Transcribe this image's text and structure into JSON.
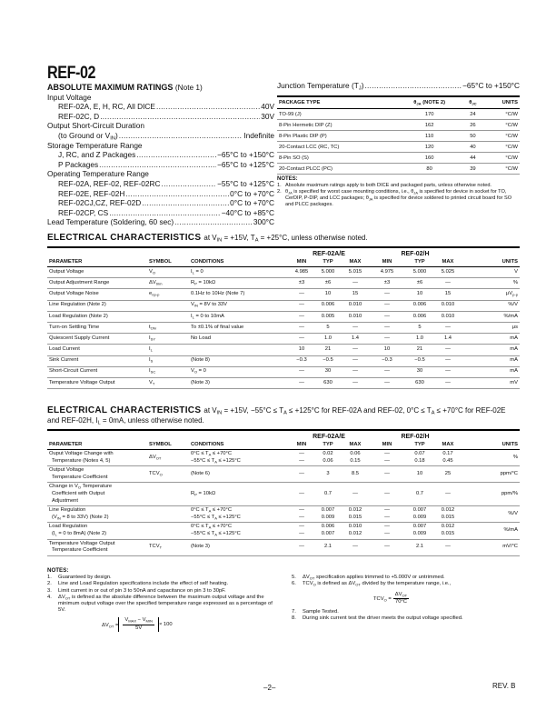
{
  "title": "REF-02",
  "abs_max": {
    "heading": "ABSOLUTE MAXIMUM RATINGS",
    "heading_note": "(Note 1)",
    "items": [
      {
        "label": "Input Voltage",
        "indent": 0
      },
      {
        "label": "REF-02A, E, H, RC, All DICE",
        "value": "40V",
        "indent": 1
      },
      {
        "label": "REF-02C, D",
        "value": "30V",
        "indent": 1
      },
      {
        "label": "Output Short-Circuit Duration",
        "indent": 0
      },
      {
        "label": "(to Ground or V_{IN})",
        "value": "Indefinite",
        "indent": 1
      },
      {
        "label": "Storage Temperature Range",
        "indent": 0
      },
      {
        "label": "J, RC, and Z Packages",
        "value": "−65°C to +150°C",
        "indent": 1
      },
      {
        "label": "P Packages",
        "value": "−65°C to +125°C",
        "indent": 1
      },
      {
        "label": "Operating Temperature  Range",
        "indent": 0
      },
      {
        "label": "REF-02A, REF-02, REF-02RC",
        "value": "−55°C to +125°C",
        "indent": 1
      },
      {
        "label": "REF-02E, REF-02H",
        "value": "0°C to +70°C",
        "indent": 1
      },
      {
        "label": "REF-02CJ,CZ, REF-02D",
        "value": "0°C to +70°C",
        "indent": 1
      },
      {
        "label": "REF-02CP, CS",
        "value": "−40°C to +85°C",
        "indent": 1
      },
      {
        "label": "Lead Temperature (Soldering, 60 sec)",
        "value": "300°C",
        "indent": 0
      }
    ]
  },
  "junction": {
    "label": "Junction Temperature (T_{J})",
    "value": "−65°C to +150°C"
  },
  "package_table": {
    "headers": [
      "PACKAGE TYPE",
      "θ_{JA} (NOTE 2)",
      "θ_{JC}",
      "UNITS"
    ],
    "rows": [
      [
        "TO-99 (J)",
        "170",
        "24",
        "°C/W"
      ],
      [
        "8-Pin Hermetic DIP (Z)",
        "162",
        "26",
        "°C/W"
      ],
      [
        "8-Pin Plastic DIP (P)",
        "110",
        "50",
        "°C/W"
      ],
      [
        "20-Contact LCC (RC, TC)",
        "120",
        "40",
        "°C/W"
      ],
      [
        "8-Pin SO (S)",
        "160",
        "44",
        "°C/W"
      ],
      [
        "20-Contact PLCC (PC)",
        "80",
        "39",
        "°C/W"
      ]
    ],
    "notes_heading": "NOTES:",
    "notes": [
      "Absolute maximum ratings apply to both DICE and packaged parts, unless otherwise noted.",
      "θ_{JA} is specified for worst case mounting conditions, i.e., θ_{JA} is specified for device in socket for TO, CerDIP, P-DIP, and LCC packages; θ_{JA} is specified for device soldered to printed circuit board for SO and PLCC packages."
    ]
  },
  "ec1": {
    "heading": "ELECTRICAL CHARACTERISTICS",
    "condition": "at V_{IN} = +15V, T_{A} = +25°C, unless otherwise noted.",
    "group_a": "REF-02A/E",
    "group_h": "REF-02/H",
    "headers": [
      "PARAMETER",
      "SYMBOL",
      "CONDITIONS",
      "MIN",
      "TYP",
      "MAX",
      "MIN",
      "TYP",
      "MAX",
      "UNITS"
    ],
    "rows": [
      [
        "Output Voltage",
        "V_{O}",
        "I_{L} = 0",
        "4.985",
        "5.000",
        "5.015",
        "4.975",
        "5.000",
        "5.025",
        "V"
      ],
      [
        "Output Adjustment Range",
        "ΔV_{trim}",
        "R_{P} = 10kΩ",
        "±3",
        "±6",
        "—",
        "±3",
        "±6",
        "—",
        "%"
      ],
      [
        "Output Voltage Noise",
        "e_{np-p}",
        "0.1Hz to 10Hz (Note 7)",
        "—",
        "10",
        "15",
        "—",
        "10",
        "15",
        "μV_{p-p}"
      ],
      [
        "Line Regulation (Note 2)",
        "",
        "V_{IN} = 8V to 33V",
        "—",
        "0.006",
        "0.010",
        "—",
        "0.006",
        "0.010",
        "%/V"
      ],
      [
        "Load Regulation (Note 2)",
        "",
        "I_{L} = 0 to 10mA",
        "—",
        "0.005",
        "0.010",
        "—",
        "0.006",
        "0.010",
        "%/mA"
      ],
      [
        "Turn-on Settling Time",
        "t_{ON}",
        "To ±0.1% of final value",
        "—",
        "5",
        "—",
        "—",
        "5",
        "—",
        "μs"
      ],
      [
        "Quiescent Supply Current",
        "I_{SY}",
        "No Load",
        "—",
        "1.0",
        "1.4",
        "—",
        "1.0",
        "1.4",
        "mA"
      ],
      [
        "Load Current",
        "I_{L}",
        "",
        "10",
        "21",
        "—",
        "10",
        "21",
        "—",
        "mA"
      ],
      [
        "Sink Current",
        "I_{S}",
        "(Note 8)",
        "−0.3",
        "−0.5",
        "—",
        "−0.3",
        "−0.5",
        "—",
        "mA"
      ],
      [
        "Short-Circuit Current",
        "I_{SC}",
        "V_{O} = 0",
        "—",
        "30",
        "—",
        "—",
        "30",
        "—",
        "mA"
      ],
      [
        "Temperature Voltage Output",
        "V_{T}",
        "(Note 3)",
        "—",
        "630",
        "—",
        "—",
        "630",
        "—",
        "mV"
      ]
    ]
  },
  "ec2": {
    "heading": "ELECTRICAL CHARACTERISTICS",
    "condition": "at V_{IN} = +15V, −55°C ≤ T_{A} ≤ +125°C for REF-02A and REF-02, 0°C ≤ T_{A} ≤ +70°C for REF-02E and REF-02H, I_{L} = 0mA, unless otherwise noted.",
    "group_a": "REF-02A/E",
    "group_h": "REF-02/H",
    "headers": [
      "PARAMETER",
      "SYMBOL",
      "CONDITIONS",
      "MIN",
      "TYP",
      "MAX",
      "MIN",
      "TYP",
      "MAX",
      "UNITS"
    ],
    "rows": [
      [
        [
          "Ouput Voltage Change with",
          "Temperature (Notes 4, 5)"
        ],
        "ΔV_{OT}",
        [
          "0°C ≤ T_{A} ≤ +70°C",
          "−55°C ≤ T_{A} ≤ +125°C"
        ],
        [
          "—",
          "—"
        ],
        [
          "0.02",
          "0.06"
        ],
        [
          "0.06",
          "0.15"
        ],
        [
          "—",
          "—"
        ],
        [
          "0.07",
          "0.18"
        ],
        [
          "0.17",
          "0.45"
        ],
        "%"
      ],
      [
        [
          "Output Voltage",
          "Temperature Coefficient"
        ],
        "TCV_{O}",
        "(Note 6)",
        "—",
        "3",
        "8.5",
        "—",
        "10",
        "25",
        "ppm/°C"
      ],
      [
        [
          "Change in V_{O} Temperature",
          "Coefficient with Output",
          "Adjustment"
        ],
        "",
        "R_{P} = 10kΩ",
        "—",
        "0.7",
        "—",
        "—",
        "0.7",
        "—",
        "ppm/%"
      ],
      [
        [
          "Line Regulation",
          "(V_{IN} = 8 to 33V) (Note 2)"
        ],
        "",
        [
          "0°C ≤ T_{A} ≤ +70°C",
          "−55°C ≤ T_{A} ≤ +125°C"
        ],
        [
          "—",
          "—"
        ],
        [
          "0.007",
          "0.009"
        ],
        [
          "0.012",
          "0.015"
        ],
        [
          "—",
          "—"
        ],
        [
          "0.007",
          "0.009"
        ],
        [
          "0.012",
          "0.015"
        ],
        "%/V"
      ],
      [
        [
          "Load Regulation",
          "(I_{L} = 0 to 8mA) (Note 2)"
        ],
        "",
        [
          "0°C ≤ T_{A} ≤ +70°C",
          "−55°C ≤ T_{A} ≤ +125°C"
        ],
        [
          "—",
          "—"
        ],
        [
          "0.006",
          "0.007"
        ],
        [
          "0.010",
          "0.012"
        ],
        [
          "—",
          "—"
        ],
        [
          "0.007",
          "0.009"
        ],
        [
          "0.012",
          "0.015"
        ],
        "%/mA"
      ],
      [
        [
          "Temperature Voltage Output",
          "Temperature Coefficient"
        ],
        "TCV_{T}",
        "(Note 3)",
        "—",
        "2.1",
        "—",
        "—",
        "2.1",
        "—",
        "mV/°C"
      ]
    ]
  },
  "notes": {
    "heading": "NOTES:",
    "left": [
      "Guaranteed by design.",
      "Line and Load Regulation specifications include the effect of self heating.",
      "Limit current in or out of pin 3 to 50nA and capacitance on pin 3 to 30pF.",
      "ΔV_{OT} is defined as the absolute difference between the maximum output voltage and the minimum output voltage over the specified temperature range expressed as a percentage of 5V."
    ],
    "formula4": {
      "lhs": "ΔV_{OT} =",
      "num": "V_{MAX} − V_{MIN}",
      "den": "5V",
      "rhs": "× 100"
    },
    "right_top": [
      "ΔV_{OT} specification applies trimmed to +5.000V or untrimmed.",
      "TCV_{O} is defined as ΔV_{OT} divided by the temperature range, i.e.,"
    ],
    "formula6": {
      "lhs": "TCV_{O} =",
      "num": "ΔV_{OT}",
      "den": "70°C"
    },
    "right_bottom": [
      "Sample Tested.",
      "During sink current test the driver meets the output voltage specified."
    ]
  },
  "footer": {
    "page": "–2–",
    "rev": "REV. B"
  }
}
